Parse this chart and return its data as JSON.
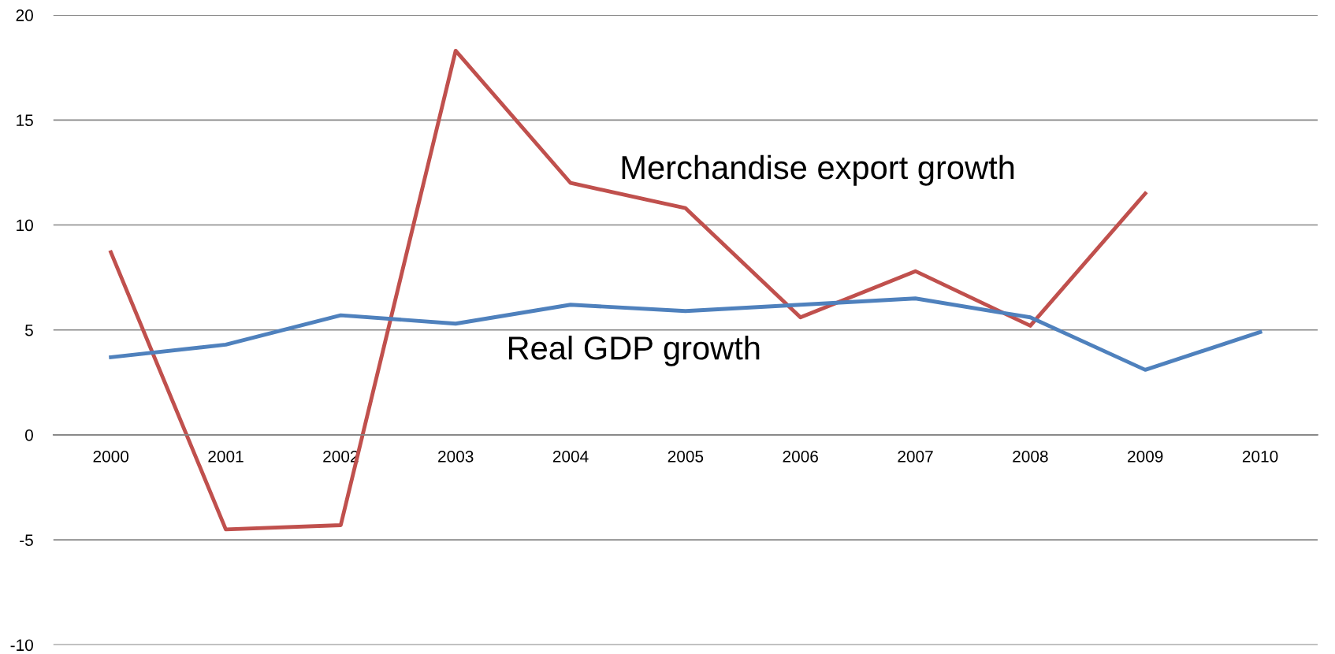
{
  "chart_data": {
    "type": "line",
    "categories": [
      "2000",
      "2001",
      "2002",
      "2003",
      "2004",
      "2005",
      "2006",
      "2007",
      "2008",
      "2009",
      "2010"
    ],
    "series": [
      {
        "name": "Merchandise export growth",
        "color": "#c0504d",
        "values": [
          8.7,
          -4.5,
          -4.3,
          18.3,
          12.0,
          10.8,
          5.6,
          7.8,
          5.2,
          11.5,
          null
        ]
      },
      {
        "name": "Real GDP growth",
        "color": "#4f81bd",
        "values": [
          3.7,
          4.3,
          5.7,
          5.3,
          6.2,
          5.9,
          6.2,
          6.5,
          5.6,
          3.1,
          4.9
        ]
      }
    ],
    "ylim": [
      -10,
      20
    ],
    "yticks": [
      -10,
      -5,
      0,
      5,
      10,
      15,
      20
    ],
    "grid": "y",
    "legend": false,
    "marker": "none",
    "line_style": "solid"
  }
}
